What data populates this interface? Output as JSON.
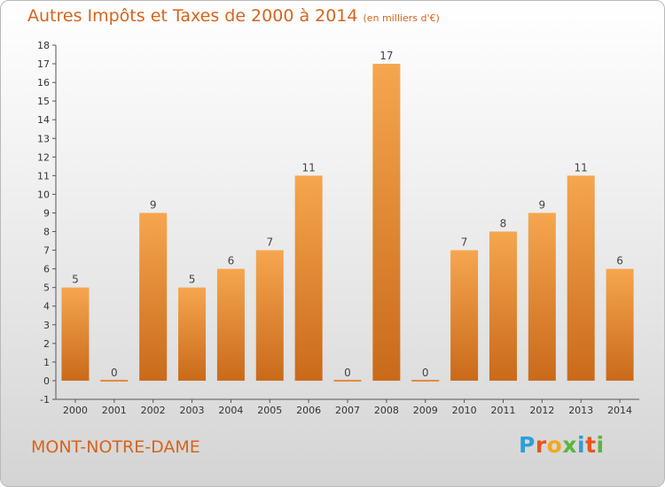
{
  "chart_data": {
    "type": "bar",
    "title": "Autres Impôts et Taxes de 2000 à 2014",
    "subtitle": "(en milliers d'€)",
    "categories": [
      "2000",
      "2001",
      "2002",
      "2003",
      "2004",
      "2005",
      "2006",
      "2007",
      "2008",
      "2009",
      "2010",
      "2011",
      "2012",
      "2013",
      "2014"
    ],
    "values": [
      5,
      0,
      9,
      5,
      6,
      7,
      11,
      0,
      17,
      0,
      7,
      8,
      9,
      11,
      6
    ],
    "ylim": [
      -1,
      18
    ],
    "yticks": [
      -1,
      0,
      1,
      2,
      3,
      4,
      5,
      6,
      7,
      8,
      9,
      10,
      11,
      12,
      13,
      14,
      15,
      16,
      17,
      18
    ],
    "grid": false,
    "bar_color": "#f0a04a"
  },
  "footer": {
    "location": "MONT-NOTRE-DAME",
    "logo_letters": [
      {
        "ch": "P",
        "color": "#2d9fd8"
      },
      {
        "ch": "r",
        "color": "#e8541e"
      },
      {
        "ch": "o",
        "color": "#f2a81d"
      },
      {
        "ch": "x",
        "color": "#5ab53c"
      },
      {
        "ch": "i",
        "color": "#2d9fd8"
      },
      {
        "ch": "t",
        "color": "#e8541e"
      },
      {
        "ch": "i",
        "color": "#5ab53c"
      }
    ]
  },
  "colors": {
    "accent": "#d6641c"
  }
}
